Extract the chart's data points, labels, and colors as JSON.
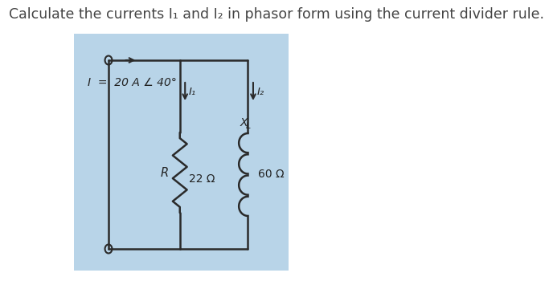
{
  "title": "Calculate the currents I₁ and I₂ in phasor form using the current divider rule.",
  "title_fontsize": 12.5,
  "title_color": "#444444",
  "bg_color": "#b8d4e8",
  "fig_bg": "#ffffff",
  "circuit": {
    "source_label": "I  =  20 A ∠ 40°",
    "R_label": "R",
    "R_value": "22 Ω",
    "XL_label": "X",
    "XL_sub": "L",
    "XL_value": "60 Ω",
    "I1_label": "I₁",
    "I2_label": "I₂"
  }
}
